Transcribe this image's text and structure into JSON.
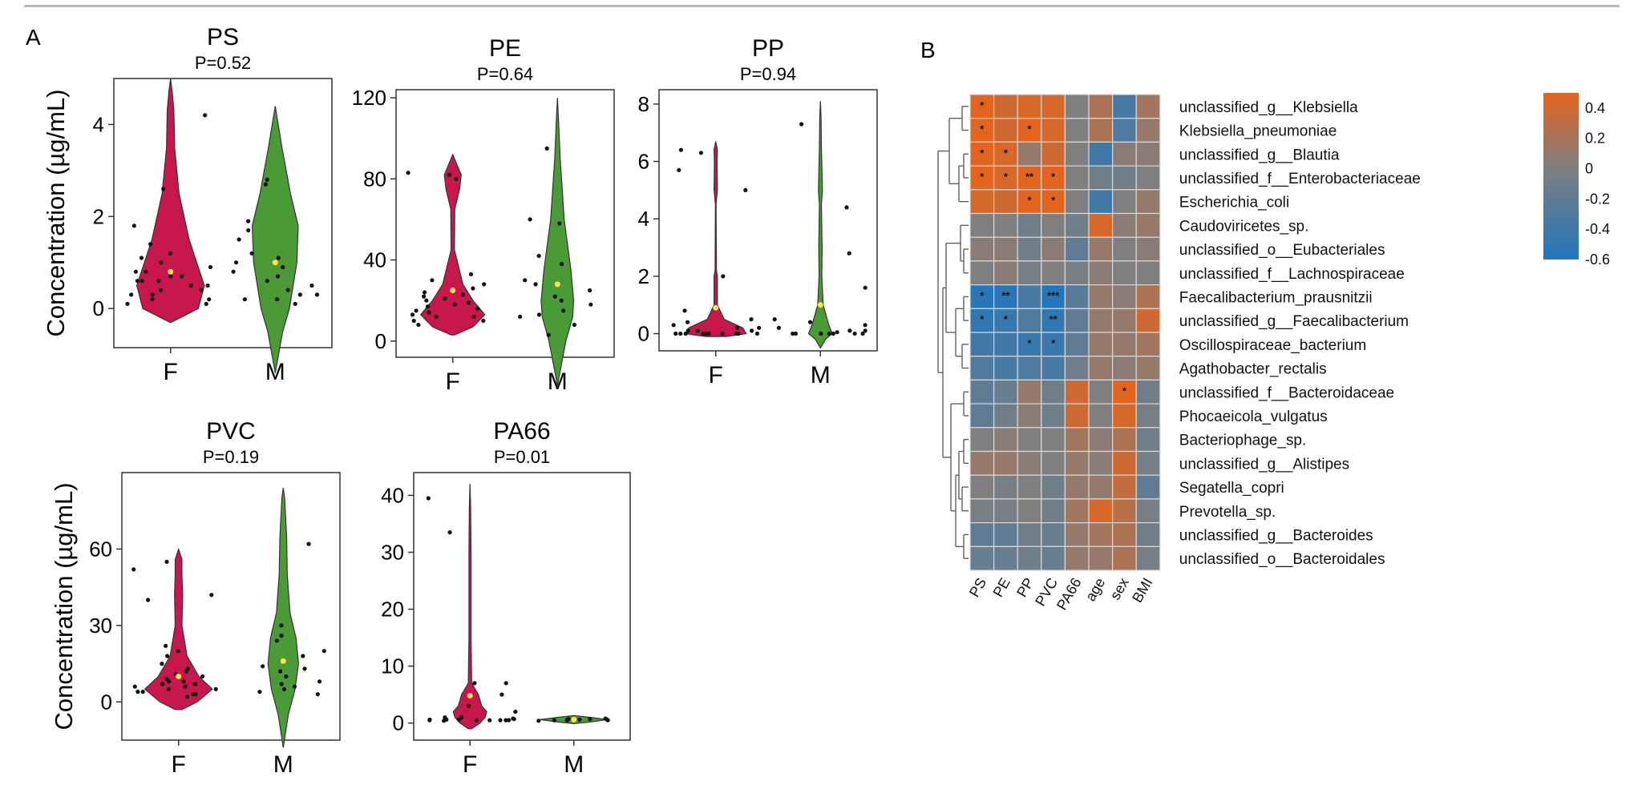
{
  "panel_labels": {
    "a": "A",
    "b": "B"
  },
  "colors": {
    "female": "#c8174d",
    "male": "#4a9a38",
    "mean": "#ffe14a",
    "point": "#111111",
    "heat_low": "#2176bd",
    "heat_mid": "#7f7f7f",
    "heat_high": "#e3641f"
  },
  "chart_data": [
    {
      "type": "violin",
      "title": "PS",
      "subtitle": "P=0.52",
      "ylabel": "Concentration (µg/mL)",
      "categories": [
        "F",
        "M"
      ],
      "ylim": [
        -0.85,
        5.0
      ],
      "yticks": [
        0,
        2,
        4
      ],
      "series": [
        {
          "name": "F",
          "mean": 0.8,
          "points": [
            0.1,
            0.2,
            0.3,
            0.4,
            0.5,
            0.6,
            0.6,
            0.7,
            0.7,
            0.8,
            0.8,
            0.9,
            1.0,
            1.1,
            1.2,
            1.4,
            1.8,
            0.5,
            0.3,
            0.2,
            0.1,
            4.2,
            0.6,
            0.4,
            2.6
          ],
          "shape": [
            [
              -0.3,
              0.02
            ],
            [
              0,
              0.82
            ],
            [
              0.5,
              1.0
            ],
            [
              1.5,
              0.55
            ],
            [
              2.5,
              0.25
            ],
            [
              3.5,
              0.12
            ],
            [
              4.3,
              0.1
            ],
            [
              4.7,
              0.05
            ],
            [
              5.0,
              0.0
            ]
          ]
        },
        {
          "name": "M",
          "mean": 1.0,
          "points": [
            0.2,
            0.3,
            0.4,
            0.5,
            0.7,
            0.9,
            1.0,
            1.1,
            1.2,
            1.5,
            1.9,
            0.8,
            0.6,
            0.3,
            2.7,
            2.8,
            1.7,
            0.1,
            0.2
          ],
          "shape": [
            [
              -1.4,
              0.0
            ],
            [
              -0.5,
              0.22
            ],
            [
              0,
              0.42
            ],
            [
              1.0,
              0.64
            ],
            [
              1.8,
              0.68
            ],
            [
              2.5,
              0.45
            ],
            [
              3.5,
              0.2
            ],
            [
              4.4,
              0.0
            ]
          ]
        }
      ]
    },
    {
      "type": "violin",
      "title": "PE",
      "subtitle": "P=0.64",
      "ylabel": "",
      "categories": [
        "F",
        "M"
      ],
      "ylim": [
        -8,
        124
      ],
      "yticks": [
        0,
        40,
        80,
        120
      ],
      "series": [
        {
          "name": "F",
          "mean": 25,
          "points": [
            8,
            10,
            12,
            13,
            14,
            15,
            16,
            17,
            18,
            19,
            20,
            21,
            22,
            23,
            24,
            26,
            28,
            30,
            33,
            12,
            10,
            80,
            82,
            83
          ],
          "shape": [
            [
              3,
              0.05
            ],
            [
              7,
              0.6
            ],
            [
              13,
              0.95
            ],
            [
              20,
              0.6
            ],
            [
              28,
              0.3
            ],
            [
              45,
              0.05
            ],
            [
              65,
              0.06
            ],
            [
              75,
              0.2
            ],
            [
              82,
              0.25
            ],
            [
              88,
              0.1
            ],
            [
              92,
              0.0
            ]
          ]
        },
        {
          "name": "M",
          "mean": 28,
          "points": [
            3,
            8,
            13,
            15,
            18,
            20,
            22,
            28,
            30,
            38,
            42,
            58,
            60,
            95,
            12,
            25
          ],
          "shape": [
            [
              -22,
              0.0
            ],
            [
              0,
              0.25
            ],
            [
              12,
              0.45
            ],
            [
              20,
              0.48
            ],
            [
              35,
              0.4
            ],
            [
              60,
              0.2
            ],
            [
              90,
              0.08
            ],
            [
              110,
              0.03
            ],
            [
              120,
              0.0
            ]
          ]
        }
      ]
    },
    {
      "type": "violin",
      "title": "PP",
      "subtitle": "P=0.94",
      "ylabel": "",
      "categories": [
        "F",
        "M"
      ],
      "ylim": [
        -0.6,
        8.5
      ],
      "yticks": [
        0,
        2,
        4,
        6,
        8
      ],
      "series": [
        {
          "name": "F",
          "mean": 0.9,
          "points": [
            0,
            0,
            0,
            0,
            0,
            0,
            0,
            0,
            0,
            0,
            0.1,
            0.1,
            0.2,
            0.3,
            0.5,
            0.8,
            2.0,
            5.0,
            5.7,
            6.3,
            6.4,
            0.1,
            0.2,
            0.4
          ],
          "shape": [
            [
              -0.1,
              0.3
            ],
            [
              0,
              0.9
            ],
            [
              0.2,
              0.8
            ],
            [
              0.5,
              0.25
            ],
            [
              1.0,
              0.05
            ],
            [
              2.0,
              0.05
            ],
            [
              2.2,
              0.02
            ],
            [
              4.5,
              0.01
            ],
            [
              5.0,
              0.05
            ],
            [
              6.0,
              0.04
            ],
            [
              6.4,
              0.05
            ],
            [
              6.7,
              0.0
            ]
          ]
        },
        {
          "name": "M",
          "mean": 1.0,
          "points": [
            0,
            0,
            0,
            0,
            0,
            0,
            0,
            0.1,
            0.2,
            0.3,
            0.4,
            0.5,
            1.6,
            2.8,
            4.4,
            7.3,
            0.05,
            0.1
          ],
          "shape": [
            [
              -0.5,
              0.0
            ],
            [
              -0.2,
              0.15
            ],
            [
              0,
              0.35
            ],
            [
              0.3,
              0.25
            ],
            [
              1.0,
              0.08
            ],
            [
              2.0,
              0.04
            ],
            [
              3.0,
              0.05
            ],
            [
              4.5,
              0.03
            ],
            [
              5.0,
              0.06
            ],
            [
              6.5,
              0.03
            ],
            [
              7.5,
              0.02
            ],
            [
              8.1,
              0.0
            ]
          ]
        }
      ]
    },
    {
      "type": "violin",
      "title": "PVC",
      "subtitle": "P=0.19",
      "ylabel": "Concentration (µg/mL)",
      "categories": [
        "F",
        "M"
      ],
      "ylim": [
        -15,
        90
      ],
      "yticks": [
        0,
        30,
        60
      ],
      "series": [
        {
          "name": "F",
          "mean": 10,
          "points": [
            2,
            3,
            4,
            5,
            5,
            6,
            6,
            7,
            7,
            8,
            8,
            9,
            10,
            11,
            12,
            13,
            15,
            18,
            20,
            22,
            40,
            42,
            52,
            55,
            4,
            3
          ],
          "shape": [
            [
              -3,
              0.1
            ],
            [
              0,
              0.55
            ],
            [
              5,
              1.0
            ],
            [
              10,
              0.6
            ],
            [
              18,
              0.25
            ],
            [
              30,
              0.1
            ],
            [
              42,
              0.12
            ],
            [
              50,
              0.1
            ],
            [
              56,
              0.1
            ],
            [
              60,
              0.0
            ]
          ]
        },
        {
          "name": "M",
          "mean": 16,
          "points": [
            3,
            5,
            6,
            8,
            10,
            12,
            14,
            18,
            20,
            24,
            26,
            30,
            62,
            4,
            7,
            13
          ],
          "shape": [
            [
              -18,
              0.0
            ],
            [
              -5,
              0.15
            ],
            [
              5,
              0.35
            ],
            [
              15,
              0.45
            ],
            [
              25,
              0.38
            ],
            [
              35,
              0.2
            ],
            [
              50,
              0.12
            ],
            [
              65,
              0.1
            ],
            [
              80,
              0.04
            ],
            [
              84,
              0.0
            ]
          ]
        }
      ]
    },
    {
      "type": "violin",
      "title": "PA66",
      "subtitle": "P=0.01",
      "ylabel": "",
      "categories": [
        "F",
        "M"
      ],
      "ylim": [
        -3,
        44
      ],
      "yticks": [
        0,
        10,
        20,
        30,
        40
      ],
      "series": [
        {
          "name": "F",
          "mean": 4.8,
          "points": [
            0.5,
            0.5,
            0.5,
            0.6,
            0.6,
            0.7,
            0.8,
            1,
            1,
            2,
            3,
            5,
            7,
            7,
            33.5,
            39.5,
            0.5,
            0.5,
            0.5,
            0.6,
            0.4
          ],
          "shape": [
            [
              -1,
              0.05
            ],
            [
              0,
              0.3
            ],
            [
              1,
              0.45
            ],
            [
              2,
              0.5
            ],
            [
              3,
              0.35
            ],
            [
              5,
              0.25
            ],
            [
              7,
              0.05
            ],
            [
              15,
              0.03
            ],
            [
              30,
              0.03
            ],
            [
              38,
              0.02
            ],
            [
              42,
              0.0
            ]
          ]
        },
        {
          "name": "M",
          "mean": 0.6,
          "points": [
            0.4,
            0.5,
            0.5,
            0.6,
            0.6,
            0.6,
            0.7,
            0.7,
            0.8,
            0.5
          ],
          "shape": [
            [
              -0.1,
              0.0
            ],
            [
              0.2,
              0.5
            ],
            [
              0.6,
              1.0
            ],
            [
              1.0,
              0.5
            ],
            [
              1.3,
              0.0
            ]
          ]
        }
      ]
    },
    {
      "type": "heatmap",
      "rows": [
        "unclassified_g__Klebsiella",
        "Klebsiella_pneumoniae",
        "unclassified_g__Blautia",
        "unclassified_f__Enterobacteriaceae",
        "Escherichia_coli",
        "Caudoviricetes_sp.",
        "unclassified_o__Eubacteriales",
        "unclassified_f__Lachnospiraceae",
        "Faecalibacterium_prausnitzii",
        "unclassified_g__Faecalibacterium",
        "Oscillospiraceae_bacterium",
        "Agathobacter_rectalis",
        "unclassified_f__Bacteroidaceae",
        "Phocaeicola_vulgatus",
        "Bacteriophage_sp.",
        "unclassified_g__Alistipes",
        "Segatella_copri",
        "Prevotella_sp.",
        "unclassified_g__Bacteroides",
        "unclassified_o__Bacteroidales"
      ],
      "columns": [
        "PS",
        "PE",
        "PP",
        "PVC",
        "PA66",
        "age",
        "sex",
        "BMI"
      ],
      "values": [
        [
          0.45,
          0.35,
          0.4,
          0.4,
          0.0,
          0.2,
          -0.35,
          0.15
        ],
        [
          0.45,
          0.35,
          0.45,
          0.4,
          0.0,
          0.2,
          -0.3,
          0.1
        ],
        [
          0.45,
          0.4,
          0.1,
          0.35,
          0.0,
          -0.4,
          0.05,
          0.05
        ],
        [
          0.45,
          0.4,
          0.5,
          0.45,
          0.0,
          -0.1,
          -0.1,
          0.0
        ],
        [
          0.4,
          0.35,
          0.5,
          0.45,
          0.0,
          -0.4,
          0.0,
          0.1
        ],
        [
          0.0,
          0.0,
          -0.1,
          0.0,
          -0.1,
          0.4,
          0.05,
          0.1
        ],
        [
          0.05,
          0.05,
          -0.1,
          0.05,
          -0.2,
          0.1,
          0.0,
          0.05
        ],
        [
          0.0,
          0.05,
          -0.05,
          0.0,
          -0.05,
          0.05,
          0.0,
          0.0
        ],
        [
          -0.55,
          -0.55,
          -0.35,
          -0.6,
          -0.25,
          0.1,
          0.05,
          0.2
        ],
        [
          -0.5,
          -0.45,
          -0.3,
          -0.5,
          -0.2,
          0.1,
          0.1,
          0.35
        ],
        [
          -0.4,
          -0.4,
          -0.45,
          -0.45,
          -0.2,
          0.1,
          0.1,
          0.15
        ],
        [
          -0.3,
          -0.35,
          -0.3,
          -0.35,
          -0.1,
          0.1,
          0.05,
          0.1
        ],
        [
          -0.2,
          -0.15,
          0.1,
          -0.1,
          0.35,
          0.0,
          0.45,
          -0.1
        ],
        [
          -0.2,
          -0.1,
          0.05,
          -0.1,
          0.35,
          0.0,
          0.4,
          -0.05
        ],
        [
          0.0,
          0.05,
          0.0,
          0.0,
          0.15,
          0.05,
          0.2,
          -0.1
        ],
        [
          0.1,
          0.1,
          0.05,
          0.0,
          0.1,
          0.05,
          0.35,
          -0.05
        ],
        [
          0.0,
          -0.05,
          0.0,
          -0.1,
          0.1,
          0.1,
          0.3,
          -0.2
        ],
        [
          -0.05,
          -0.05,
          0.0,
          -0.1,
          0.15,
          0.4,
          0.25,
          -0.05
        ],
        [
          -0.2,
          -0.2,
          -0.1,
          -0.15,
          0.1,
          0.15,
          0.2,
          -0.1
        ],
        [
          -0.15,
          -0.15,
          -0.1,
          -0.15,
          0.1,
          0.1,
          0.2,
          -0.05
        ]
      ],
      "significance": [
        [
          "*",
          "",
          "",
          "",
          "",
          "",
          "",
          ""
        ],
        [
          "*",
          "",
          "*",
          "",
          "",
          "",
          "",
          ""
        ],
        [
          "*",
          "*",
          "",
          "",
          "",
          "",
          "",
          ""
        ],
        [
          "*",
          "*",
          "**",
          "*",
          "",
          "",
          "",
          ""
        ],
        [
          "",
          "",
          "*",
          "*",
          "",
          "",
          "",
          ""
        ],
        [
          "",
          "",
          "",
          "",
          "",
          "",
          "",
          ""
        ],
        [
          "",
          "",
          "",
          "",
          "",
          "",
          "",
          ""
        ],
        [
          "",
          "",
          "",
          "",
          "",
          "",
          "",
          ""
        ],
        [
          "*",
          "**",
          "",
          "***",
          "",
          "",
          "",
          ""
        ],
        [
          "*",
          "*",
          "",
          "**",
          "",
          "",
          "",
          ""
        ],
        [
          "",
          "",
          "*",
          "*",
          "",
          "",
          "",
          ""
        ],
        [
          "",
          "",
          "",
          "",
          "",
          "",
          "",
          ""
        ],
        [
          "",
          "",
          "",
          "",
          "",
          "",
          "*",
          ""
        ],
        [
          "",
          "",
          "",
          "",
          "",
          "",
          "",
          ""
        ],
        [
          "",
          "",
          "",
          "",
          "",
          "",
          "",
          ""
        ],
        [
          "",
          "",
          "",
          "",
          "",
          "",
          "",
          ""
        ],
        [
          "",
          "",
          "",
          "",
          "",
          "",
          "",
          ""
        ],
        [
          "",
          "",
          "",
          "",
          "",
          "",
          "",
          ""
        ],
        [
          "",
          "",
          "",
          "",
          "",
          "",
          "",
          ""
        ],
        [
          "",
          "",
          "",
          "",
          "",
          "",
          "",
          ""
        ]
      ],
      "colorbar": {
        "range": [
          -0.6,
          0.5
        ],
        "ticks": [
          "0.4",
          "0.2",
          "0",
          "-0.2",
          "-0.4",
          "-0.6"
        ]
      },
      "dendrogram": true
    }
  ]
}
